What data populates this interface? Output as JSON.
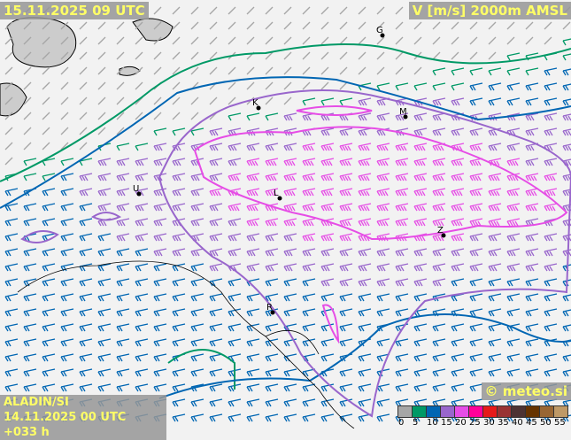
{
  "header": {
    "run_time": "15.11.2025 09 UTC",
    "field": "V [m/s] 2000m AMSL"
  },
  "footer": {
    "model": "ALADIN/SI",
    "init": "14.11.2025 00 UTC +033 h",
    "copyright": "© meteo.si"
  },
  "legend": {
    "ticks": [
      "0",
      "5",
      "10",
      "15",
      "20",
      "25",
      "30",
      "35",
      "40",
      "45",
      "50",
      "55"
    ],
    "colors": [
      "#a6a6a6",
      "#009966",
      "#0066b3",
      "#9966cc",
      "#e64de6",
      "#ff0099",
      "#e61a1a",
      "#993333",
      "#4d3333",
      "#663300",
      "#996633",
      "#bf9966"
    ]
  },
  "cities": [
    {
      "label": "G"
    },
    {
      "label": "K"
    },
    {
      "label": "M"
    },
    {
      "label": "L"
    },
    {
      "label": "U"
    },
    {
      "label": "Z"
    },
    {
      "label": "R"
    }
  ]
}
